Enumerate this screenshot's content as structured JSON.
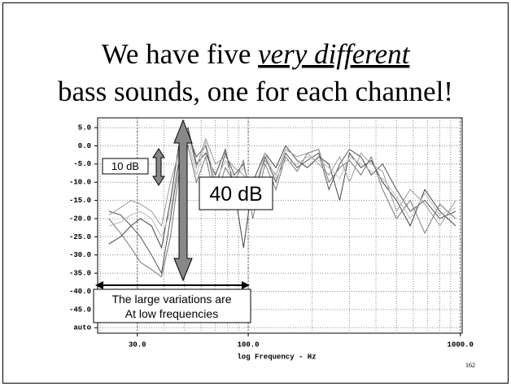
{
  "chart_data": {
    "type": "line",
    "title": [
      "We have five",
      "very different",
      "bass sounds, one for each channel!"
    ],
    "xlabel": "log Frequency - Hz",
    "page_number": "162",
    "log_x": true,
    "grid": true,
    "xlim": [
      19.5,
      1020
    ],
    "ylim": [
      -51.5,
      7.7
    ],
    "xticks": [
      {
        "value": 30,
        "label": "30.0"
      },
      {
        "value": 100,
        "label": "100.0"
      },
      {
        "value": 1000,
        "label": "1000.0"
      }
    ],
    "yticks": [
      {
        "value": 5,
        "label": "5.0"
      },
      {
        "value": 0,
        "label": "0.0"
      },
      {
        "value": -5,
        "label": "-5.0"
      },
      {
        "value": -10,
        "label": "-10.0"
      },
      {
        "value": -15,
        "label": "-15.0"
      },
      {
        "value": -20,
        "label": "-20.0"
      },
      {
        "value": -25,
        "label": "-25.0"
      },
      {
        "value": -30,
        "label": "-30.0"
      },
      {
        "value": -35,
        "label": "-35.0"
      },
      {
        "value": -40,
        "label": "-40.0"
      },
      {
        "value": -45,
        "label": "-45.0"
      },
      {
        "value": -50,
        "label": "auto"
      }
    ],
    "x": [
      22,
      25,
      28,
      31,
      35,
      39,
      43,
      47,
      52,
      57,
      63,
      70,
      78,
      86,
      95,
      105,
      120,
      135,
      150,
      170,
      190,
      215,
      240,
      270,
      300,
      340,
      380,
      430,
      500,
      580,
      680,
      800,
      950
    ],
    "series": [
      {
        "color": "#555555",
        "values": [
          -18,
          -19,
          -22,
          -25,
          -30,
          -35,
          -20,
          -5,
          3,
          -3,
          0,
          -12,
          -2,
          -8,
          -5,
          -15,
          -3,
          -10,
          -2,
          -6,
          -4,
          -2,
          -12,
          -5,
          -1,
          -3,
          -8,
          -5,
          -12,
          -18,
          -15,
          -20,
          -18
        ]
      },
      {
        "color": "#444444",
        "values": [
          -27,
          -25,
          -22,
          -20,
          -22,
          -28,
          -15,
          0,
          5,
          -5,
          -2,
          -8,
          -1,
          -12,
          -28,
          -10,
          -2,
          -6,
          0,
          -4,
          -6,
          -3,
          -5,
          -15,
          -2,
          -6,
          -4,
          -10,
          -15,
          -22,
          -12,
          -18,
          -22
        ]
      },
      {
        "color": "#999999",
        "values": [
          -19,
          -17,
          -15,
          -16,
          -18,
          -22,
          -10,
          -2,
          4,
          -6,
          2,
          -5,
          -3,
          -6,
          -8,
          -12,
          -4,
          -8,
          -1,
          -3,
          -2,
          -5,
          -8,
          -3,
          -10,
          -2,
          -5,
          -7,
          -18,
          -12,
          -16,
          -22,
          -15
        ]
      },
      {
        "color": "#777777",
        "values": [
          -20,
          -24,
          -28,
          -32,
          -34,
          -36,
          -25,
          -8,
          0,
          -10,
          -3,
          -15,
          -6,
          -10,
          -4,
          -20,
          -5,
          -12,
          -3,
          -7,
          -2,
          -1,
          -10,
          -6,
          -4,
          -8,
          -3,
          -12,
          -20,
          -15,
          -24,
          -16,
          -20
        ]
      },
      {
        "color": "#bbbbbb",
        "values": [
          -22,
          -21,
          -19,
          -18,
          -20,
          -25,
          -18,
          -3,
          2,
          -8,
          1,
          -10,
          -4,
          -9,
          -6,
          -14,
          -2,
          -9,
          -4,
          -5,
          -3,
          -4,
          -6,
          -9,
          -3,
          -5,
          -7,
          -9,
          -14,
          -20,
          -13,
          -19,
          -17
        ]
      }
    ],
    "annotations": [
      "10 dB",
      "40 dB",
      "The large variations are",
      "At low frequencies"
    ]
  }
}
